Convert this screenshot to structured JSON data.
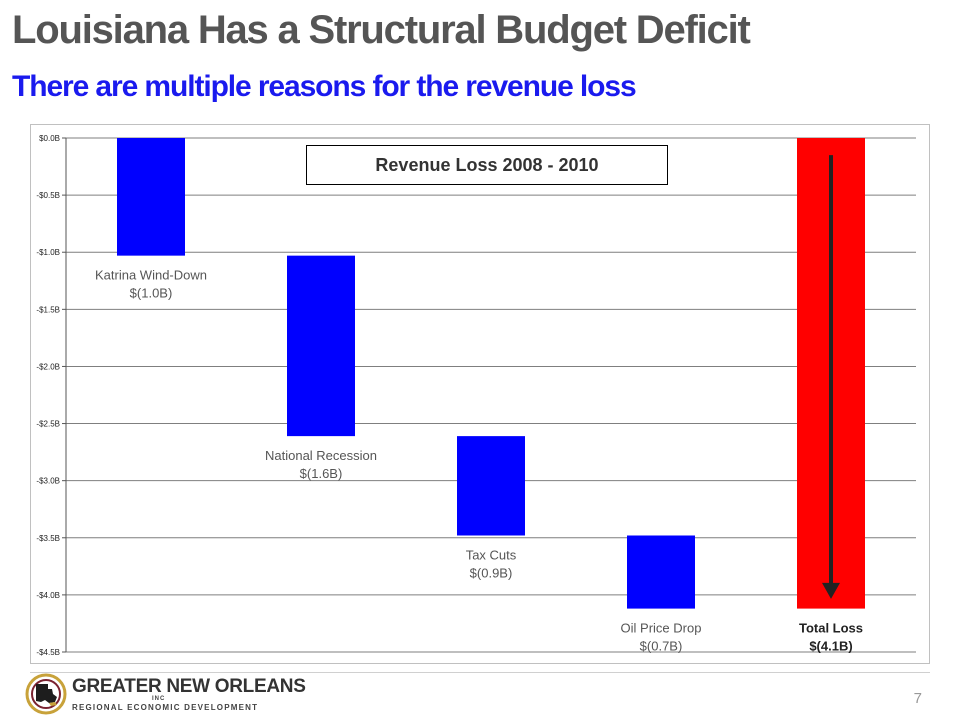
{
  "slide": {
    "title": "Louisiana Has a Structural Budget Deficit",
    "subtitle": "There are multiple reasons for the revenue loss",
    "page_number": "7"
  },
  "colors": {
    "title": "#555555",
    "subtitle": "#1a1aee",
    "bar_blue": "#0000ff",
    "bar_red": "#ff0000",
    "arrow": "#222222"
  },
  "logo": {
    "main_text": "GREATER NEW ORLEANS",
    "inc_text": "INC",
    "sub_text": "REGIONAL ECONOMIC DEVELOPMENT",
    "icon": "louisiana-map-icon"
  },
  "chart_data": {
    "type": "bar",
    "subtype": "waterfall",
    "title": "Revenue Loss 2008 - 2010",
    "xlabel": "",
    "ylabel": "",
    "ylim": [
      -4.5,
      0
    ],
    "y_ticks": [
      0,
      -0.5,
      -1.0,
      -1.5,
      -2.0,
      -2.5,
      -3.0,
      -3.5,
      -4.0,
      -4.5
    ],
    "y_tick_labels": [
      "$0.0B",
      "-$0.5B",
      "-$1.0B",
      "-$1.5B",
      "-$2.0B",
      "-$2.5B",
      "-$3.0B",
      "-$3.5B",
      "-$4.0B",
      "-$4.5B"
    ],
    "grid": true,
    "bars": [
      {
        "label": "Katrina Wind-Down",
        "value_label": "$(1.0B)",
        "start": 0.0,
        "end": -1.03,
        "color": "#0000ff",
        "bold": false
      },
      {
        "label": "National Recession",
        "value_label": "$(1.6B)",
        "start": -1.03,
        "end": -2.61,
        "color": "#0000ff",
        "bold": false
      },
      {
        "label": "Tax Cuts",
        "value_label": "$(0.9B)",
        "start": -2.61,
        "end": -3.48,
        "color": "#0000ff",
        "bold": false
      },
      {
        "label": "Oil Price Drop",
        "value_label": "$(0.7B)",
        "start": -3.48,
        "end": -4.12,
        "color": "#0000ff",
        "bold": false
      },
      {
        "label": "Total Loss",
        "value_label": "$(4.1B)",
        "start": 0.0,
        "end": -4.12,
        "color": "#ff0000",
        "bold": true
      }
    ],
    "total_arrow": {
      "from": -0.15,
      "to": -4.0
    }
  }
}
